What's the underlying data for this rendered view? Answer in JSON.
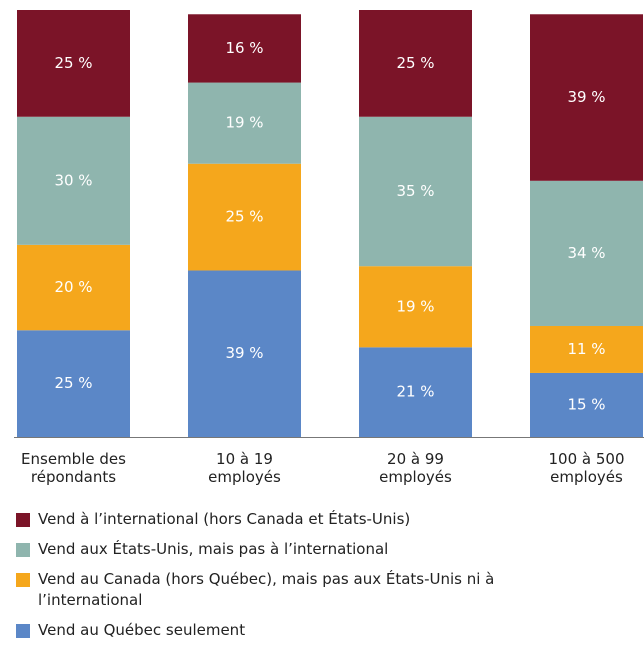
{
  "chart_data": {
    "type": "stacked_bar",
    "categories": [
      "Ensemble des répondants",
      "10 à 19 employés",
      "20 à 99 employés",
      "100 à 500 employés"
    ],
    "ylim": [
      0,
      100
    ],
    "series": [
      {
        "name": "Vend au Québec seulement",
        "color": "#5b87c7",
        "values": [
          25,
          39,
          21,
          15
        ],
        "value_labels": [
          "25 %",
          "39 %",
          "21 %",
          "15 %"
        ]
      },
      {
        "name": "Vend au Canada (hors Québec), mais pas aux États-Unis ni à l’international",
        "color": "#f5a71c",
        "values": [
          20,
          25,
          19,
          11
        ],
        "value_labels": [
          "20 %",
          "25 %",
          "19 %",
          "11 %"
        ]
      },
      {
        "name": "Vend aux États-Unis, mais pas à l’international",
        "color": "#8fb5ae",
        "values": [
          30,
          19,
          35,
          34
        ],
        "value_labels": [
          "30 %",
          "19 %",
          "35 %",
          "34 %"
        ]
      },
      {
        "name": "Vend à l’international (hors Canada et États-Unis)",
        "color": "#7b1428",
        "values": [
          25,
          16,
          25,
          39
        ],
        "value_labels": [
          "25 %",
          "16 %",
          "25 %",
          "39 %"
        ]
      }
    ]
  }
}
